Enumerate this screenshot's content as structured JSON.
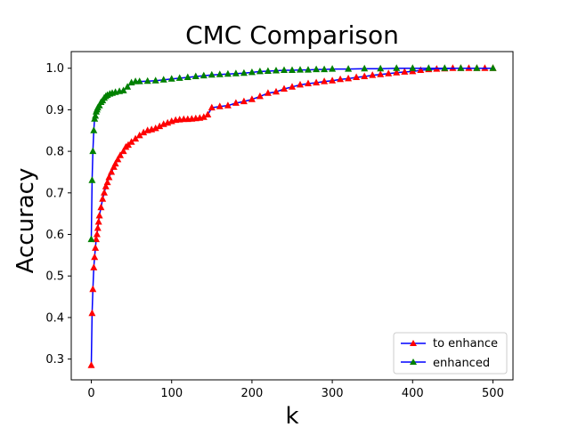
{
  "chart_data": {
    "type": "line",
    "title": "CMC Comparison",
    "xlabel": "k",
    "ylabel": "Accuracy",
    "xlim": [
      -25,
      525
    ],
    "ylim": [
      0.25,
      1.04
    ],
    "xticks": [
      0,
      100,
      200,
      300,
      400,
      500
    ],
    "yticks": [
      0.3,
      0.4,
      0.5,
      0.6,
      0.7,
      0.8,
      0.9,
      1.0
    ],
    "ytick_labels": [
      "0.3",
      "0.4",
      "0.5",
      "0.6",
      "0.7",
      "0.8",
      "0.9",
      "1.0"
    ],
    "grid": false,
    "legend_position": "lower-right",
    "line_color": "#0000ff",
    "series": [
      {
        "name": "to enhance",
        "marker_color": "#ff0000",
        "x": [
          0,
          1,
          2,
          3,
          4,
          5,
          6,
          7,
          8,
          9,
          10,
          12,
          14,
          16,
          18,
          20,
          22,
          25,
          28,
          30,
          33,
          36,
          40,
          43,
          46,
          50,
          55,
          60,
          65,
          70,
          75,
          80,
          85,
          90,
          95,
          100,
          105,
          110,
          115,
          120,
          125,
          130,
          135,
          140,
          145,
          150,
          160,
          170,
          180,
          190,
          200,
          210,
          220,
          230,
          240,
          250,
          260,
          270,
          280,
          290,
          300,
          310,
          320,
          330,
          340,
          350,
          360,
          370,
          380,
          390,
          400,
          410,
          420,
          430,
          440,
          450,
          460,
          470,
          480,
          490,
          500
        ],
        "y": [
          0.285,
          0.41,
          0.468,
          0.52,
          0.545,
          0.567,
          0.588,
          0.6,
          0.615,
          0.63,
          0.645,
          0.665,
          0.685,
          0.7,
          0.715,
          0.725,
          0.737,
          0.75,
          0.762,
          0.77,
          0.78,
          0.79,
          0.8,
          0.81,
          0.815,
          0.822,
          0.83,
          0.838,
          0.845,
          0.85,
          0.852,
          0.855,
          0.86,
          0.865,
          0.868,
          0.872,
          0.875,
          0.876,
          0.877,
          0.877,
          0.878,
          0.879,
          0.88,
          0.882,
          0.888,
          0.905,
          0.908,
          0.91,
          0.916,
          0.92,
          0.925,
          0.932,
          0.94,
          0.943,
          0.95,
          0.955,
          0.96,
          0.963,
          0.965,
          0.968,
          0.97,
          0.973,
          0.975,
          0.978,
          0.98,
          0.983,
          0.985,
          0.987,
          0.989,
          0.991,
          0.992,
          0.995,
          0.997,
          0.998,
          0.999,
          1.0,
          1.0,
          1.0,
          1.0,
          1.0,
          1.0
        ]
      },
      {
        "name": "enhanced",
        "marker_color": "#008000",
        "x": [
          0,
          1,
          2,
          3,
          4,
          5,
          6,
          7,
          8,
          10,
          12,
          14,
          16,
          18,
          20,
          23,
          26,
          30,
          35,
          40,
          45,
          50,
          55,
          60,
          70,
          80,
          90,
          100,
          110,
          120,
          130,
          140,
          150,
          160,
          170,
          180,
          190,
          200,
          210,
          220,
          230,
          240,
          250,
          260,
          270,
          280,
          290,
          300,
          320,
          340,
          360,
          380,
          400,
          420,
          440,
          460,
          480,
          500
        ],
        "y": [
          0.588,
          0.73,
          0.8,
          0.85,
          0.878,
          0.885,
          0.895,
          0.9,
          0.905,
          0.91,
          0.918,
          0.922,
          0.928,
          0.932,
          0.935,
          0.938,
          0.94,
          0.942,
          0.944,
          0.946,
          0.955,
          0.965,
          0.968,
          0.968,
          0.969,
          0.97,
          0.972,
          0.974,
          0.976,
          0.978,
          0.98,
          0.982,
          0.984,
          0.985,
          0.986,
          0.987,
          0.988,
          0.99,
          0.992,
          0.993,
          0.994,
          0.995,
          0.995,
          0.996,
          0.996,
          0.997,
          0.997,
          0.998,
          0.998,
          0.999,
          0.999,
          1.0,
          1.0,
          1.0,
          1.0,
          1.0,
          1.0,
          1.0
        ]
      }
    ]
  }
}
